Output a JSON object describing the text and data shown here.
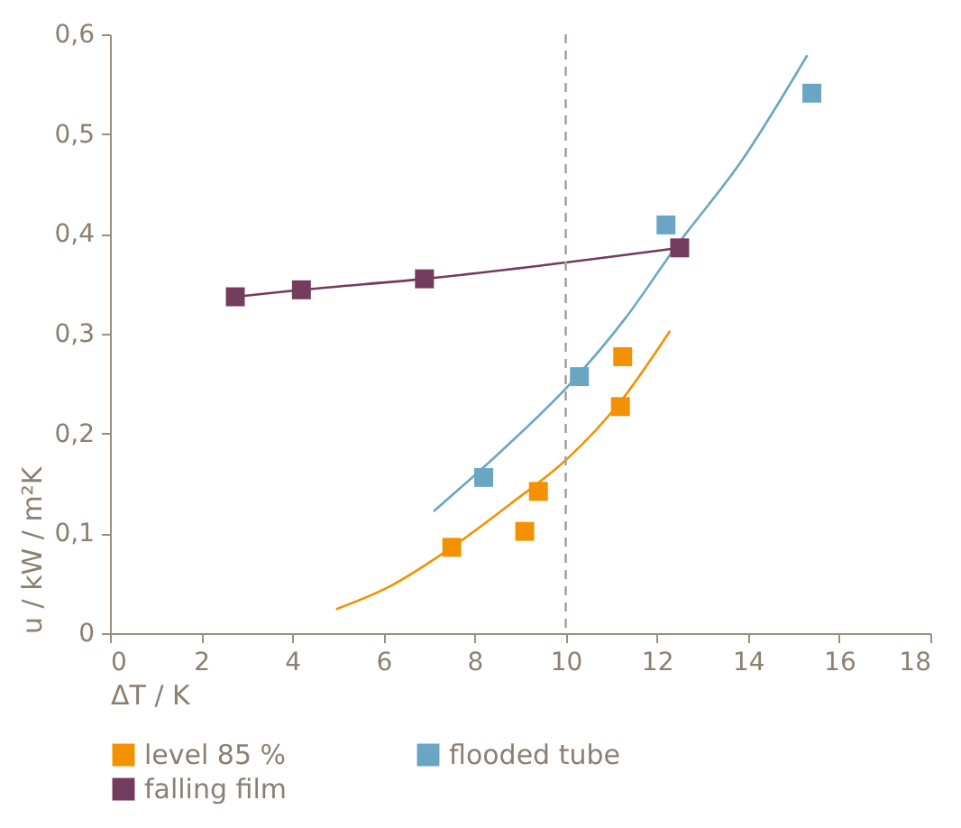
{
  "chart_data": {
    "type": "scatter",
    "xlabel": "ΔT / K",
    "ylabel": "u / kW / m²K",
    "xlim": [
      0,
      18
    ],
    "xticks": [
      0,
      2,
      4,
      6,
      8,
      10,
      12,
      14,
      16,
      18
    ],
    "ylim": [
      0,
      0.6
    ],
    "yticks": [
      0,
      {
        "value": 0.1,
        "label": "0,1"
      },
      {
        "value": 0.2,
        "label": "0,2"
      },
      {
        "value": 0.3,
        "label": "0,3"
      },
      {
        "value": 0.4,
        "label": "0,4"
      },
      {
        "value": 0.5,
        "label": "0,5"
      },
      {
        "value": 0.6,
        "label": "0,6"
      }
    ],
    "grid": false,
    "legend": "bottom",
    "ref_lines": [
      {
        "axis": "x",
        "value": 10,
        "color": "#a9a39a",
        "line_style": "dashed"
      }
    ],
    "series": [
      {
        "name": "level 85 %",
        "marker": "square",
        "color": "#f39200",
        "x": [
          7.5,
          9.1,
          9.4,
          11.2,
          11.25
        ],
        "values": [
          0.086,
          0.102,
          0.142,
          0.227,
          0.277
        ]
      },
      {
        "type": "line",
        "marker": "none",
        "color": "#f39200",
        "x": [
          4.96,
          6.06,
          7.5,
          8.8,
          10.04,
          11.2,
          12.29
        ],
        "values": [
          0.024,
          0.045,
          0.086,
          0.13,
          0.175,
          0.232,
          0.303
        ]
      },
      {
        "name": "flooded tube",
        "marker": "square",
        "color": "#6aa6c4",
        "x": [
          8.2,
          10.3,
          12.2,
          15.4
        ],
        "values": [
          0.156,
          0.257,
          0.409,
          0.541
        ]
      },
      {
        "type": "line",
        "marker": "none",
        "color": "#6aa6c4",
        "x": [
          7.1,
          8.6,
          10.1,
          11.3,
          12.4,
          13.9,
          15.3
        ],
        "values": [
          0.122,
          0.183,
          0.25,
          0.315,
          0.386,
          0.476,
          0.579
        ]
      },
      {
        "name": "falling film",
        "type": "line",
        "marker": "square",
        "color": "#733b5e",
        "x": [
          2.75,
          4.2,
          6.9,
          12.5
        ],
        "values": [
          0.337,
          0.344,
          0.355,
          0.386
        ]
      }
    ]
  }
}
